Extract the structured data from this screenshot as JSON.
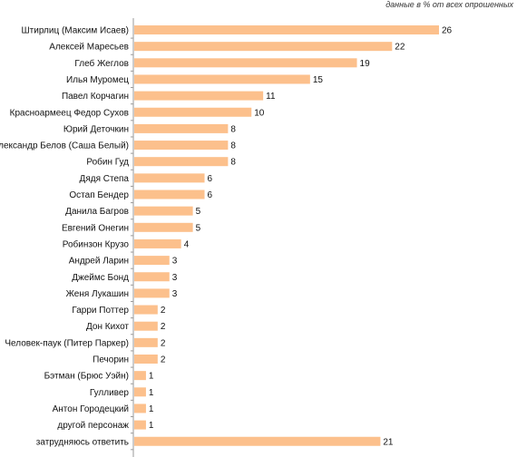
{
  "note": "данные в % от всех опрошенных",
  "colors": {
    "bar": "#fcc08c",
    "axis": "#999999"
  },
  "chart_data": {
    "type": "bar",
    "orientation": "horizontal",
    "categories": [
      "Штирлиц (Максим Исаев)",
      "Алексей Маресьев",
      "Глеб Жеглов",
      "Илья Муромец",
      "Павел Корчагин",
      "Красноармеец Федор Сухов",
      "Юрий Деточкин",
      "Александр Белов (Саша Белый)",
      "Робин Гуд",
      "Дядя Степа",
      "Остап Бендер",
      "Данила Багров",
      "Евгений Онегин",
      "Робинзон Крузо",
      "Андрей Ларин",
      "Джеймс Бонд",
      "Женя Лукашин",
      "Гарри Поттер",
      "Дон Кихот",
      "Человек-паук (Питер Паркер)",
      "Печорин",
      "Бэтман (Брюс Уэйн)",
      "Гулливер",
      "Антон Городецкий",
      "другой персонаж",
      "затрудняюсь ответить"
    ],
    "values": [
      26,
      22,
      19,
      15,
      11,
      10,
      8,
      8,
      8,
      6,
      6,
      5,
      5,
      4,
      3,
      3,
      3,
      2,
      2,
      2,
      2,
      1,
      1,
      1,
      1,
      21
    ],
    "xlim": [
      0,
      26
    ],
    "grid": false,
    "legend": "none"
  }
}
